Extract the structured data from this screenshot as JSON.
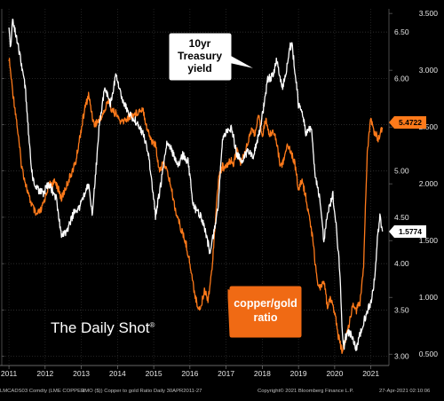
{
  "chart_data": {
    "type": "line",
    "x_ticks": [
      "2011",
      "2012",
      "2013",
      "2014",
      "2015",
      "2016",
      "2017",
      "2018",
      "2019",
      "2020",
      "2021"
    ],
    "y_left_ticks": [
      "3.00",
      "3.50",
      "4.00",
      "4.50",
      "5.00",
      "5.50",
      "6.00",
      "6.50"
    ],
    "y_right_ticks": [
      "0.500",
      "1.000",
      "1.500",
      "2.000",
      "2.500",
      "3.000",
      "3.500"
    ],
    "ylim_left": [
      2.9,
      6.75
    ],
    "ylim_right": [
      0.4,
      3.54
    ],
    "series": [
      {
        "name": "copper/gold ratio",
        "axis": "left",
        "color": "#ff7a1a",
        "current_label": "5.4722",
        "points": [
          [
            "2011.00",
            6.22
          ],
          [
            "2011.05",
            6.05
          ],
          [
            "2011.10",
            5.87
          ],
          [
            "2011.20",
            5.58
          ],
          [
            "2011.35",
            5.05
          ],
          [
            "2011.55",
            4.72
          ],
          [
            "2011.75",
            4.52
          ],
          [
            "2011.90",
            4.58
          ],
          [
            "2012.10",
            4.85
          ],
          [
            "2012.30",
            4.88
          ],
          [
            "2012.45",
            4.7
          ],
          [
            "2012.60",
            4.85
          ],
          [
            "2012.85",
            5.1
          ],
          [
            "2012.95",
            5.35
          ],
          [
            "2013.10",
            5.68
          ],
          [
            "2013.20",
            5.82
          ],
          [
            "2013.35",
            5.5
          ],
          [
            "2013.50",
            5.55
          ],
          [
            "2013.65",
            5.65
          ],
          [
            "2013.75",
            5.78
          ],
          [
            "2013.85",
            5.65
          ],
          [
            "2013.95",
            5.62
          ],
          [
            "2014.10",
            5.52
          ],
          [
            "2014.30",
            5.58
          ],
          [
            "2014.50",
            5.62
          ],
          [
            "2014.70",
            5.68
          ],
          [
            "2014.82",
            5.45
          ],
          [
            "2014.95",
            5.32
          ],
          [
            "2015.05",
            5.28
          ],
          [
            "2015.15",
            5.02
          ],
          [
            "2015.30",
            5.08
          ],
          [
            "2015.45",
            4.88
          ],
          [
            "2015.60",
            4.58
          ],
          [
            "2015.75",
            4.38
          ],
          [
            "2015.90",
            4.2
          ],
          [
            "2016.00",
            4.0
          ],
          [
            "2016.10",
            3.75
          ],
          [
            "2016.20",
            3.55
          ],
          [
            "2016.30",
            3.52
          ],
          [
            "2016.40",
            3.72
          ],
          [
            "2016.50",
            3.62
          ],
          [
            "2016.60",
            3.9
          ],
          [
            "2016.70",
            4.45
          ],
          [
            "2016.80",
            4.95
          ],
          [
            "2016.90",
            5.05
          ],
          [
            "2017.00",
            5.02
          ],
          [
            "2017.10",
            5.12
          ],
          [
            "2017.20",
            5.08
          ],
          [
            "2017.30",
            5.22
          ],
          [
            "2017.40",
            5.08
          ],
          [
            "2017.50",
            5.18
          ],
          [
            "2017.60",
            5.32
          ],
          [
            "2017.70",
            5.45
          ],
          [
            "2017.80",
            5.4
          ],
          [
            "2017.90",
            5.58
          ],
          [
            "2018.00",
            5.4
          ],
          [
            "2018.10",
            5.55
          ],
          [
            "2018.20",
            5.38
          ],
          [
            "2018.30",
            5.45
          ],
          [
            "2018.40",
            5.3
          ],
          [
            "2018.50",
            5.05
          ],
          [
            "2018.60",
            5.12
          ],
          [
            "2018.70",
            5.3
          ],
          [
            "2018.80",
            5.2
          ],
          [
            "2018.90",
            5.08
          ],
          [
            "2019.00",
            4.8
          ],
          [
            "2019.10",
            4.9
          ],
          [
            "2019.20",
            4.72
          ],
          [
            "2019.30",
            4.5
          ],
          [
            "2019.40",
            4.25
          ],
          [
            "2019.50",
            3.85
          ],
          [
            "2019.60",
            3.72
          ],
          [
            "2019.70",
            3.8
          ],
          [
            "2019.80",
            3.55
          ],
          [
            "2019.90",
            3.62
          ],
          [
            "2020.00",
            3.48
          ],
          [
            "2020.10",
            3.22
          ],
          [
            "2020.20",
            3.05
          ],
          [
            "2020.30",
            3.18
          ],
          [
            "2020.40",
            3.35
          ],
          [
            "2020.50",
            3.55
          ],
          [
            "2020.60",
            3.5
          ],
          [
            "2020.70",
            3.58
          ],
          [
            "2020.80",
            3.95
          ],
          [
            "2020.85",
            4.6
          ],
          [
            "2020.90",
            5.2
          ],
          [
            "2020.95",
            5.4
          ],
          [
            "2021.00",
            5.55
          ],
          [
            "2021.10",
            5.42
          ],
          [
            "2021.20",
            5.35
          ],
          [
            "2021.32",
            5.47
          ]
        ]
      },
      {
        "name": "10yr Treasury yield",
        "axis": "right",
        "color": "#ffffff",
        "current_label": "1.5774",
        "points": [
          [
            "2011.00",
            3.35
          ],
          [
            "2011.05",
            3.2
          ],
          [
            "2011.10",
            3.45
          ],
          [
            "2011.20",
            3.3
          ],
          [
            "2011.35",
            3.05
          ],
          [
            "2011.45",
            2.85
          ],
          [
            "2011.55",
            2.4
          ],
          [
            "2011.65",
            2.05
          ],
          [
            "2011.80",
            1.95
          ],
          [
            "2011.95",
            1.92
          ],
          [
            "2012.10",
            2.0
          ],
          [
            "2012.30",
            1.88
          ],
          [
            "2012.45",
            1.55
          ],
          [
            "2012.60",
            1.58
          ],
          [
            "2012.80",
            1.75
          ],
          [
            "2012.95",
            1.8
          ],
          [
            "2013.10",
            1.92
          ],
          [
            "2013.20",
            2.0
          ],
          [
            "2013.30",
            1.72
          ],
          [
            "2013.40",
            2.1
          ],
          [
            "2013.50",
            2.55
          ],
          [
            "2013.65",
            2.85
          ],
          [
            "2013.80",
            2.7
          ],
          [
            "2013.95",
            2.95
          ],
          [
            "2014.10",
            2.78
          ],
          [
            "2014.30",
            2.62
          ],
          [
            "2014.50",
            2.55
          ],
          [
            "2014.70",
            2.45
          ],
          [
            "2014.85",
            2.28
          ],
          [
            "2015.05",
            1.72
          ],
          [
            "2015.20",
            2.0
          ],
          [
            "2015.35",
            2.35
          ],
          [
            "2015.50",
            2.3
          ],
          [
            "2015.65",
            2.15
          ],
          [
            "2015.80",
            2.25
          ],
          [
            "2015.95",
            2.2
          ],
          [
            "2016.10",
            1.8
          ],
          [
            "2016.30",
            1.72
          ],
          [
            "2016.45",
            1.55
          ],
          [
            "2016.55",
            1.4
          ],
          [
            "2016.65",
            1.55
          ],
          [
            "2016.78",
            1.8
          ],
          [
            "2016.90",
            2.4
          ],
          [
            "2017.00",
            2.45
          ],
          [
            "2017.15",
            2.5
          ],
          [
            "2017.30",
            2.25
          ],
          [
            "2017.45",
            2.2
          ],
          [
            "2017.60",
            2.3
          ],
          [
            "2017.75",
            2.25
          ],
          [
            "2017.90",
            2.42
          ],
          [
            "2018.05",
            2.7
          ],
          [
            "2018.15",
            2.92
          ],
          [
            "2018.30",
            2.95
          ],
          [
            "2018.40",
            3.1
          ],
          [
            "2018.55",
            2.85
          ],
          [
            "2018.65",
            2.95
          ],
          [
            "2018.75",
            3.2
          ],
          [
            "2018.82",
            3.22
          ],
          [
            "2018.90",
            3.0
          ],
          [
            "2019.00",
            2.7
          ],
          [
            "2019.10",
            2.65
          ],
          [
            "2019.20",
            2.45
          ],
          [
            "2019.35",
            2.5
          ],
          [
            "2019.45",
            2.1
          ],
          [
            "2019.60",
            1.85
          ],
          [
            "2019.70",
            1.5
          ],
          [
            "2019.80",
            1.75
          ],
          [
            "2019.95",
            1.9
          ],
          [
            "2020.05",
            1.6
          ],
          [
            "2020.15",
            1.2
          ],
          [
            "2020.20",
            0.75
          ],
          [
            "2020.25",
            0.55
          ],
          [
            "2020.30",
            0.65
          ],
          [
            "2020.40",
            0.7
          ],
          [
            "2020.50",
            0.65
          ],
          [
            "2020.60",
            0.55
          ],
          [
            "2020.70",
            0.68
          ],
          [
            "2020.80",
            0.78
          ],
          [
            "2020.90",
            0.88
          ],
          [
            "2021.00",
            0.95
          ],
          [
            "2021.10",
            1.15
          ],
          [
            "2021.18",
            1.5
          ],
          [
            "2021.25",
            1.7
          ],
          [
            "2021.32",
            1.58
          ]
        ]
      }
    ],
    "annotations": {
      "treasury_callout": "10yr\nTreasury\nyield",
      "copper_callout": "copper/gold\nratio"
    },
    "brand": "The Daily Shot",
    "brand_mark": "®",
    "footer": {
      "left_1": "LMCADS03 Comdty  (LME COPPER",
      "left_2": "3MO ($)) Copper to gold Ratio  Daily 30APR2011-27",
      "center": "Copyright© 2021 Bloomberg Finance L.P.",
      "right": "27-Apr-2021 02:10:06"
    }
  }
}
